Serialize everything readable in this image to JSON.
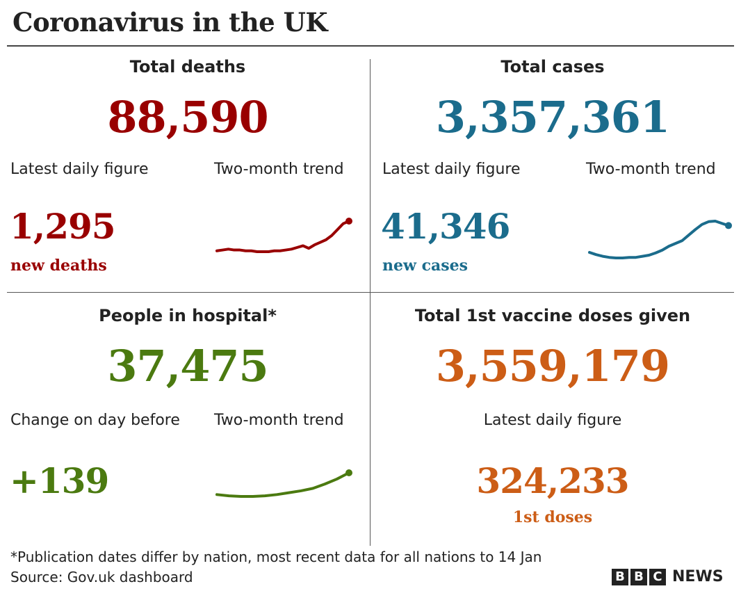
{
  "title": "Coronavirus in the UK",
  "colors": {
    "deaths": "#990000",
    "cases": "#1b6c8c",
    "hospital": "#4b7a10",
    "vaccine": "#cc5d16"
  },
  "deaths": {
    "heading": "Total deaths",
    "total": "88,590",
    "latest_label": "Latest daily figure",
    "trend_label": "Two-month trend",
    "latest": "1,295",
    "latest_unit": "new deaths"
  },
  "cases": {
    "heading": "Total cases",
    "total": "3,357,361",
    "latest_label": "Latest daily figure",
    "trend_label": "Two-month trend",
    "latest": "41,346",
    "latest_unit": "new cases"
  },
  "hospital": {
    "heading": "People in hospital*",
    "total": "37,475",
    "latest_label": "Change on day before",
    "trend_label": "Two-month trend",
    "latest": "+139"
  },
  "vaccine": {
    "heading": "Total 1st vaccine doses given",
    "total": "3,559,179",
    "latest_label": "Latest daily figure",
    "latest": "324,233",
    "latest_unit": "1st doses"
  },
  "footnote": "*Publication dates differ by nation, most recent data for all nations to 14 Jan",
  "source": "Source: Gov.uk dashboard",
  "logo": {
    "letters": [
      "B",
      "B",
      "C"
    ],
    "word": "NEWS"
  },
  "chart_data": [
    {
      "type": "line",
      "title": "Two-month trend (deaths)",
      "series": [
        {
          "name": "deaths",
          "values": [
            20,
            21,
            22,
            21,
            21,
            20,
            20,
            19,
            19,
            19,
            20,
            20,
            21,
            22,
            24,
            26,
            23,
            27,
            30,
            33,
            38,
            45,
            52,
            55
          ]
        }
      ]
    },
    {
      "type": "line",
      "title": "Two-month trend (cases)",
      "series": [
        {
          "name": "cases",
          "values": [
            30,
            26,
            23,
            21,
            20,
            20,
            21,
            21,
            23,
            25,
            29,
            34,
            41,
            46,
            51,
            61,
            71,
            80,
            85,
            86,
            82,
            78
          ]
        }
      ]
    },
    {
      "type": "line",
      "title": "Two-month trend (hospital)",
      "series": [
        {
          "name": "hospital",
          "values": [
            20,
            18,
            17,
            17,
            18,
            20,
            23,
            26,
            30,
            37,
            45,
            55
          ]
        }
      ]
    }
  ]
}
